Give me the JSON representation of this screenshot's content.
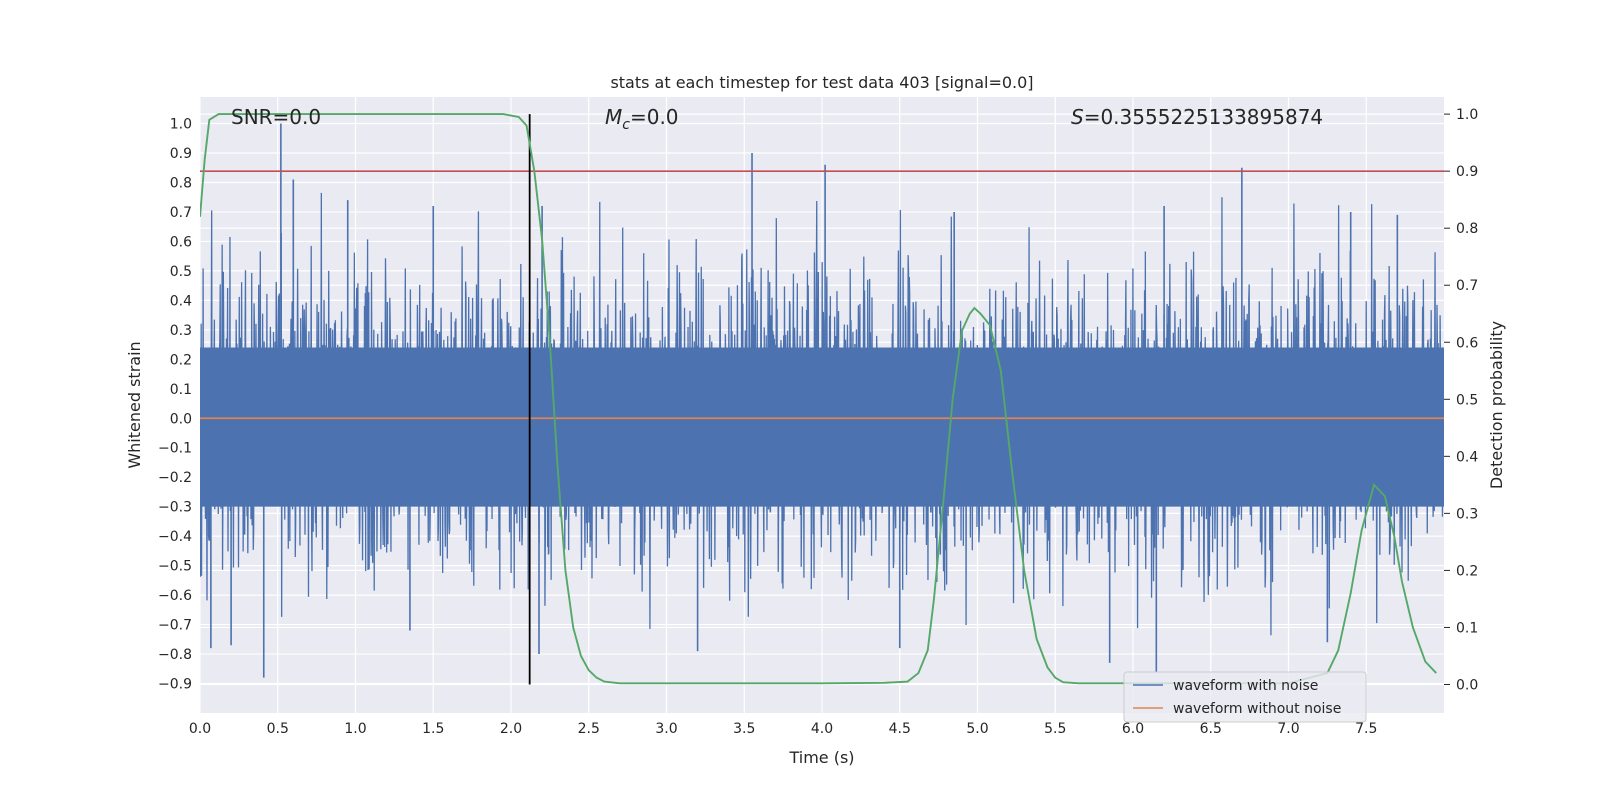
{
  "chart_data": {
    "type": "line",
    "title": "stats at each timestep for test data 403 [signal=0.0]",
    "xlabel": "Time (s)",
    "ylabel_left": "Whitened strain",
    "ylabel_right": "Detection probability",
    "xlim": [
      0.0,
      8.0
    ],
    "ylim_left": [
      -1.0,
      1.09
    ],
    "ylim_right": [
      -0.05,
      1.03
    ],
    "x_ticks": [
      "0.0",
      "0.5",
      "1.0",
      "1.5",
      "2.0",
      "2.5",
      "3.0",
      "3.5",
      "4.0",
      "4.5",
      "5.0",
      "5.5",
      "6.0",
      "6.5",
      "7.0",
      "7.5"
    ],
    "y_left_ticks": [
      "−0.9",
      "−0.8",
      "−0.7",
      "−0.6",
      "−0.5",
      "−0.4",
      "−0.3",
      "−0.2",
      "−0.1",
      "0.0",
      "0.1",
      "0.2",
      "0.3",
      "0.4",
      "0.5",
      "0.6",
      "0.7",
      "0.8",
      "0.9",
      "1.0"
    ],
    "y_right_ticks": [
      "0.0",
      "0.1",
      "0.2",
      "0.3",
      "0.4",
      "0.5",
      "0.6",
      "0.7",
      "0.8",
      "0.9",
      "1.0"
    ],
    "grid": true,
    "legend_position": "lower-right",
    "annotations": {
      "snr": "SNR=0.0",
      "mc_symbol": "M",
      "mc_sub": "c",
      "mc_value": "=0.0",
      "s_symbol": "S",
      "s_value": "=0.3555225133895874"
    },
    "series": [
      {
        "name": "waveform with noise",
        "axis": "left",
        "color": "#4c72b0",
        "envelope_spikes": [
          [
            0.52,
            1.0
          ],
          [
            0.6,
            0.81
          ],
          [
            0.95,
            0.74
          ],
          [
            1.5,
            0.72
          ],
          [
            2.2,
            0.72
          ],
          [
            3.55,
            0.9
          ],
          [
            4.02,
            0.86
          ],
          [
            4.85,
            0.7
          ],
          [
            6.2,
            0.72
          ],
          [
            6.7,
            0.85
          ],
          [
            7.4,
            0.7
          ],
          [
            7.7,
            0.69
          ],
          [
            0.41,
            -0.88
          ],
          [
            0.07,
            -0.78
          ],
          [
            0.2,
            -0.77
          ],
          [
            1.35,
            -0.72
          ],
          [
            2.18,
            -0.8
          ],
          [
            3.2,
            -0.79
          ],
          [
            4.5,
            -0.78
          ],
          [
            5.85,
            -0.83
          ],
          [
            6.15,
            -0.86
          ],
          [
            7.25,
            -0.76
          ]
        ],
        "noise_amplitude": 0.62
      },
      {
        "name": "waveform without noise",
        "axis": "left",
        "color": "#dd8452",
        "x": [
          0.0,
          8.0
        ],
        "y": [
          0.0,
          0.0
        ]
      },
      {
        "name": "detection probability",
        "axis": "right",
        "color": "#55a868",
        "x": [
          0.0,
          0.03,
          0.06,
          0.12,
          0.3,
          1.0,
          1.5,
          1.95,
          2.05,
          2.1,
          2.15,
          2.2,
          2.25,
          2.3,
          2.35,
          2.4,
          2.45,
          2.5,
          2.55,
          2.6,
          2.7,
          2.9,
          3.2,
          3.5,
          4.0,
          4.4,
          4.55,
          4.62,
          4.68,
          4.72,
          4.78,
          4.84,
          4.9,
          4.95,
          4.98,
          5.02,
          5.08,
          5.15,
          5.22,
          5.3,
          5.38,
          5.45,
          5.5,
          5.55,
          5.65,
          6.0,
          6.5,
          7.0,
          7.25,
          7.32,
          7.4,
          7.47,
          7.55,
          7.62,
          7.68,
          7.73,
          7.8,
          7.88,
          7.95
        ],
        "y": [
          0.82,
          0.92,
          0.99,
          1.0,
          1.0,
          1.0,
          1.0,
          1.0,
          0.995,
          0.98,
          0.9,
          0.78,
          0.6,
          0.38,
          0.2,
          0.1,
          0.05,
          0.025,
          0.012,
          0.005,
          0.002,
          0.002,
          0.002,
          0.002,
          0.002,
          0.003,
          0.005,
          0.02,
          0.06,
          0.15,
          0.32,
          0.5,
          0.62,
          0.65,
          0.66,
          0.65,
          0.63,
          0.55,
          0.38,
          0.2,
          0.08,
          0.03,
          0.012,
          0.004,
          0.002,
          0.002,
          0.002,
          0.002,
          0.02,
          0.06,
          0.16,
          0.27,
          0.35,
          0.33,
          0.26,
          0.18,
          0.1,
          0.04,
          0.02
        ]
      }
    ],
    "reference_lines": {
      "threshold_right": 0.9,
      "threshold_color": "#c44e52",
      "marker_time": 2.12,
      "marker_color": "#000000"
    }
  }
}
